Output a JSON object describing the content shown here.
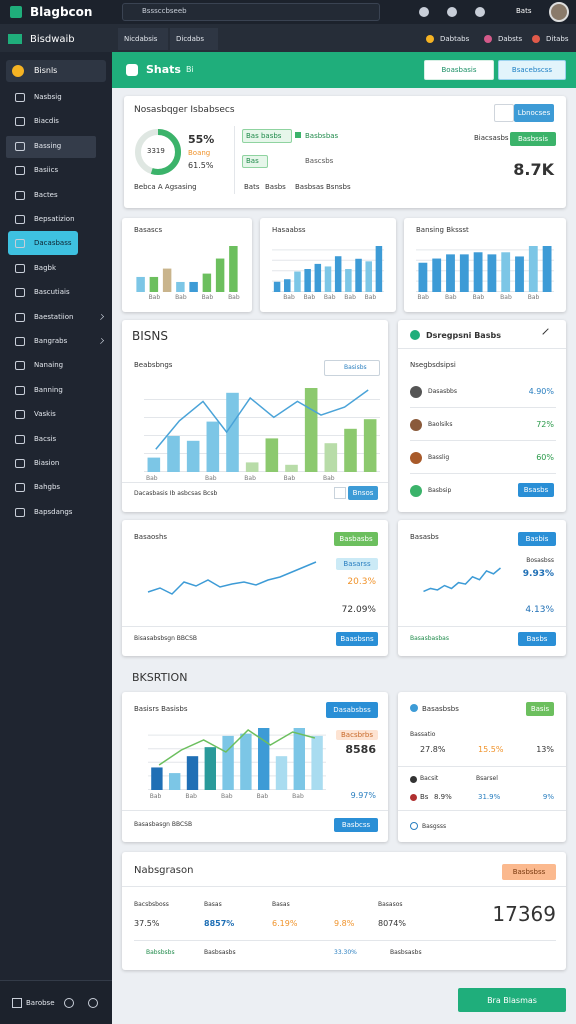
{
  "topbar": {
    "brand": "Blagbcon",
    "search": "Bsssccbseeb",
    "user": "Bats"
  },
  "tabs": [
    "Nicdabsis",
    "Dicdabs"
  ],
  "top_links": [
    "Dabtabs",
    "Dabsts",
    "Ditabs"
  ],
  "sidebar": {
    "title": "Bisdwaib",
    "first": "Bisnls",
    "items": [
      "Nasbsig",
      "Biacdis",
      "Bassing",
      "Basiics",
      "Bactes",
      "Bepsatizion",
      "Dacasbass",
      "Bagbk",
      "Bascutiais",
      "Baestatiion",
      "Bangrabs",
      "Nanaing",
      "Banning",
      "Vaskis",
      "Bacsis",
      "Biasion",
      "Bahgbs",
      "Bapsdangs"
    ],
    "footer": "Barobse"
  },
  "header": {
    "title": "Shats",
    "tag": "Bi",
    "buttons": [
      "Boasbasis",
      "Bsacebscss"
    ]
  },
  "summary": {
    "title": "Nosasbqger Isbabsecs",
    "donut": {
      "value": 55,
      "label": "55%",
      "inner": "3319",
      "sub": "Boang",
      "sub2": "61.5%"
    },
    "caption": "Bebca A Agsasing",
    "chips": [
      "Bas basbs",
      "Basbsbas"
    ],
    "rows": [
      "Bas",
      "Bascsbs"
    ],
    "foot": [
      "Bats",
      "Basbs",
      "Basbsas Bsnsbs"
    ],
    "button": "Lbnocses",
    "link": "Biacsasbs",
    "button2": "Basbssis",
    "big": "8.7K"
  },
  "mini_charts": [
    {
      "title": "Basascs",
      "values": [
        18,
        18,
        28,
        12,
        12,
        22,
        40,
        55
      ],
      "colors": [
        "#7cc6e6",
        "#6cbf5e",
        "#c9b48c",
        "#7cc6e6",
        "#3d9bd6",
        "#6cbf5e",
        "#6cbf5e",
        "#6cbf5e"
      ],
      "categories": [
        null,
        "Bab",
        null,
        "Bab",
        null,
        "Bab",
        null,
        "Bab"
      ]
    },
    {
      "title": "Hasaabss",
      "values": [
        8,
        10,
        16,
        18,
        22,
        20,
        28,
        18,
        26,
        24,
        36
      ],
      "colors": [
        "#3d9bd6",
        "#3d9bd6",
        "#7cc6e6",
        "#3d9bd6",
        "#3d9bd6",
        "#7cc6e6",
        "#3d9bd6",
        "#7cc6e6",
        "#3d9bd6",
        "#7cc6e6",
        "#3d9bd6"
      ],
      "categories": [
        null,
        "Bab",
        null,
        "Bab",
        null,
        "Bab",
        null,
        "Bab",
        null,
        "Bab",
        null
      ]
    },
    {
      "title": "Bansing Bkssst",
      "values": [
        28,
        32,
        36,
        36,
        38,
        36,
        38,
        34,
        44,
        44
      ],
      "colors": [
        "#3d9bd6",
        "#3d9bd6",
        "#3d9bd6",
        "#3d9bd6",
        "#3d9bd6",
        "#3d9bd6",
        "#7cc6e6",
        "#3d9bd6",
        "#7cc6e6",
        "#3d9bd6"
      ],
      "categories": [
        "Bab",
        null,
        "Bab",
        null,
        "Bab",
        null,
        "Bab",
        null,
        "Bab",
        null
      ]
    }
  ],
  "trend": {
    "section": "BISNS",
    "title": "Beabsbngs",
    "button": "Basisbs",
    "values": [
      12,
      30,
      26,
      42,
      66,
      8,
      28,
      6,
      70,
      24,
      36,
      44
    ],
    "colors": [
      "#7cc6e6",
      "#7cc6e6",
      "#7cc6e6",
      "#7cc6e6",
      "#7cc6e6",
      "#b8dca8",
      "#8cc96e",
      "#b8dca8",
      "#8cc96e",
      "#b8dca8",
      "#8cc96e",
      "#8cc96e"
    ],
    "line": [
      20,
      45,
      62,
      35,
      65,
      48,
      62,
      50,
      57,
      72
    ],
    "line_color": "#4aa3d8",
    "categories": [
      "Bab",
      null,
      null,
      "Bab",
      null,
      "Bab",
      null,
      "Bab",
      null,
      "Bab",
      null,
      null
    ],
    "footer": "Dacasbasis Ib asbcsas Bcsb",
    "button2": "Bnsos"
  },
  "list_card": {
    "title": "Dsregpsni Basbs",
    "subtitle": "Nsegbsdsipsi",
    "rows": [
      {
        "name": "Dasasbbs",
        "value": "4.90%"
      },
      {
        "name": "Baolsiks",
        "value": "72%"
      },
      {
        "name": "Basslig",
        "value": "60%"
      },
      {
        "name": "Basbsip",
        "value": "Bsasbs"
      }
    ]
  },
  "line_card": {
    "title": "Basaoshs",
    "button": "Basbasbs",
    "tag": "Basarss",
    "v1": "20.3%",
    "v2": "72.09%",
    "line": [
      20,
      24,
      18,
      30,
      26,
      32,
      25,
      28,
      30,
      27,
      32,
      35,
      40,
      45,
      50
    ],
    "color": "#3d9bd6",
    "footer": "Bisasabsbsgn BBCSB",
    "button2": "Baasbsns"
  },
  "small_line": {
    "title": "Basasbs",
    "button": "Basbis",
    "label": "Bosasbss",
    "v1": "9.93%",
    "v2": "4.13%",
    "line": [
      10,
      12,
      11,
      14,
      12,
      16,
      15,
      20,
      18,
      24,
      22,
      26
    ],
    "color": "#3d9bd6",
    "footer": "Basasbasbas",
    "button2": "Basbs"
  },
  "section2": {
    "title": "BKSRTION",
    "card": {
      "title": "Basisrs Basisbs",
      "button": "Dasabsbss",
      "tag": "Bacsbrbs",
      "v1": "8586",
      "v2": "9.97%",
      "values": [
        20,
        15,
        30,
        38,
        48,
        50,
        55,
        30,
        55,
        48
      ],
      "colors": [
        "#1f6fb5",
        "#7cc6e6",
        "#1f6fb5",
        "#2a9a9a",
        "#7cc6e6",
        "#7cc6e6",
        "#3d9bd6",
        "#a9dcf0",
        "#7cc6e6",
        "#a9dcf0"
      ],
      "line": [
        25,
        40,
        50,
        38,
        60,
        45,
        58,
        52
      ],
      "line_color": "#6cbf5e",
      "categories": [
        "Bab",
        null,
        "Bab",
        null,
        "Bab",
        null,
        "Bab",
        null,
        "Bab",
        null
      ],
      "footer": "Basasbasgn BBCSB",
      "button2": "Basbcss"
    }
  },
  "stat_card": {
    "title": "Basasbsbs",
    "button": "Basis",
    "r1": [
      "Bassatio",
      "27.8%",
      "15.5%",
      "13%"
    ],
    "r2": [
      "Bacsit",
      "Bsarsel"
    ],
    "r3": [
      "Bs",
      "8.9%",
      "31.9%",
      "9%"
    ],
    "footer": "Basgsss"
  },
  "bottom": {
    "title": "Nabsgrason",
    "button": "Basbsbss",
    "labels": [
      "Bacsbsboss",
      "Basas",
      "Basas",
      "Basasos"
    ],
    "values": [
      "37.5%",
      "8857%",
      "6.19%",
      "9.8%",
      "8074%"
    ],
    "big": "17369",
    "footer": [
      "Babsbsbs",
      "Basbsasbs",
      "33.30%",
      "Basbsasbs"
    ]
  },
  "float_button": "Bra Blasmas"
}
